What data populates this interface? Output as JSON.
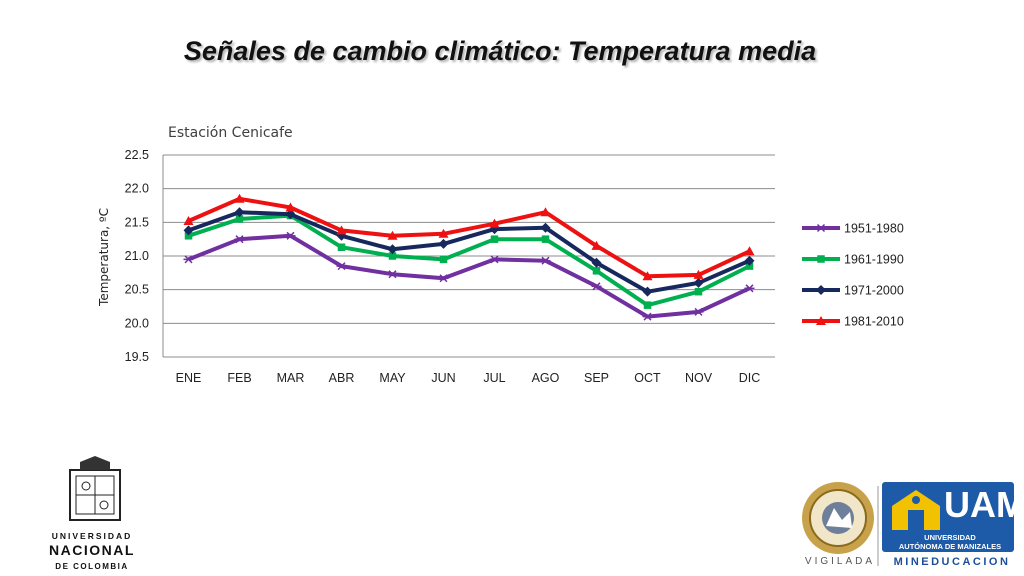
{
  "slide": {
    "title": "Señales de cambio climático: Temperatura media"
  },
  "chart_data": {
    "type": "line",
    "title": "Estación Cenicafe",
    "xlabel": "",
    "ylabel": "Temperatura, ºC",
    "categories": [
      "ENE",
      "FEB",
      "MAR",
      "ABR",
      "MAY",
      "JUN",
      "JUL",
      "AGO",
      "SEP",
      "OCT",
      "NOV",
      "DIC"
    ],
    "y_ticks": [
      "22.5",
      "22.0",
      "21.5",
      "21.0",
      "20.5",
      "20.0",
      "19.5"
    ],
    "ylim": [
      19.5,
      22.5
    ],
    "grid": "horizontal",
    "legend_position": "right",
    "series": [
      {
        "name": "1951-1980",
        "color": "#7030a0",
        "marker": "asterisk",
        "values": [
          20.95,
          21.25,
          21.3,
          20.85,
          20.73,
          20.67,
          20.95,
          20.93,
          20.55,
          20.1,
          20.17,
          20.52
        ]
      },
      {
        "name": "1961-1990",
        "color": "#00b050",
        "marker": "square",
        "values": [
          21.3,
          21.55,
          21.6,
          21.13,
          21.0,
          20.95,
          21.25,
          21.25,
          20.78,
          20.27,
          20.47,
          20.85
        ]
      },
      {
        "name": "1971-2000",
        "color": "#17285e",
        "marker": "diamond",
        "values": [
          21.38,
          21.65,
          21.62,
          21.3,
          21.1,
          21.18,
          21.4,
          21.42,
          20.9,
          20.47,
          20.6,
          20.93
        ]
      },
      {
        "name": "1981-2010",
        "color": "#ee1111",
        "marker": "triangle",
        "values": [
          21.52,
          21.85,
          21.72,
          21.38,
          21.3,
          21.33,
          21.48,
          21.65,
          21.15,
          20.7,
          20.72,
          21.07
        ]
      }
    ]
  },
  "logos": {
    "unal": {
      "line1": "UNIVERSIDAD",
      "line2": "NACIONAL",
      "line3": "DE COLOMBIA"
    },
    "vigilada": "VIGILADA",
    "uam": {
      "acronym": "UAM",
      "line1": "UNIVERSIDAD",
      "line2": "AUTÓNOMA DE MANIZALES"
    },
    "mineducacion": "MINEDUCACION"
  }
}
